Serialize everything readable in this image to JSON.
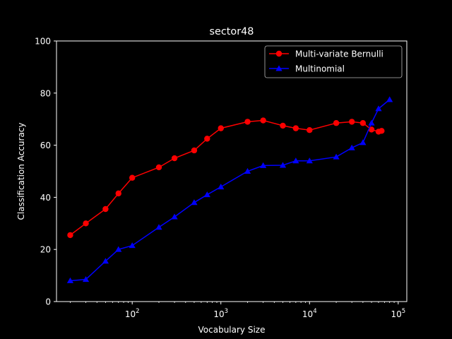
{
  "chart_data": {
    "type": "line",
    "title": "sector48",
    "xlabel": "Vocabulary Size",
    "ylabel": "Classification Accuracy",
    "xscale": "log",
    "xlim": [
      14,
      125000
    ],
    "ylim": [
      0,
      100
    ],
    "yticks": [
      "0",
      "20",
      "40",
      "60",
      "80",
      "100"
    ],
    "xticks": [
      {
        "value": 100,
        "base": "10",
        "exp": "2"
      },
      {
        "value": 1000,
        "base": "10",
        "exp": "3"
      },
      {
        "value": 10000,
        "base": "10",
        "exp": "4"
      },
      {
        "value": 100000,
        "base": "10",
        "exp": "5"
      }
    ],
    "legend_position": "top-right",
    "background": "#000000",
    "foreground": "#ffffff",
    "series": [
      {
        "name": "Multi-variate Bernulli",
        "color": "#ff0000",
        "marker": "circle",
        "x": [
          20,
          30,
          50,
          70,
          100,
          200,
          300,
          500,
          700,
          1000,
          2000,
          3000,
          5000,
          7000,
          10000,
          20000,
          30000,
          40000,
          50000,
          60000,
          65000
        ],
        "y": [
          25.5,
          30,
          35.5,
          41.5,
          47.5,
          51.5,
          55,
          58,
          62.5,
          66.5,
          69,
          69.5,
          67.5,
          66.5,
          65.8,
          68.5,
          69,
          68.5,
          66,
          65.2,
          65.5
        ]
      },
      {
        "name": "Multinomial",
        "color": "#0000ff",
        "marker": "triangle",
        "x": [
          20,
          30,
          50,
          70,
          100,
          200,
          300,
          500,
          700,
          1000,
          2000,
          3000,
          5000,
          7000,
          10000,
          20000,
          30000,
          40000,
          50000,
          60000,
          80000
        ],
        "y": [
          8,
          8.5,
          15.5,
          20,
          21.5,
          28.5,
          32.5,
          38,
          41,
          44,
          50,
          52.2,
          52.3,
          54,
          54,
          55.5,
          59,
          61,
          68.5,
          74,
          77.5
        ]
      }
    ]
  }
}
